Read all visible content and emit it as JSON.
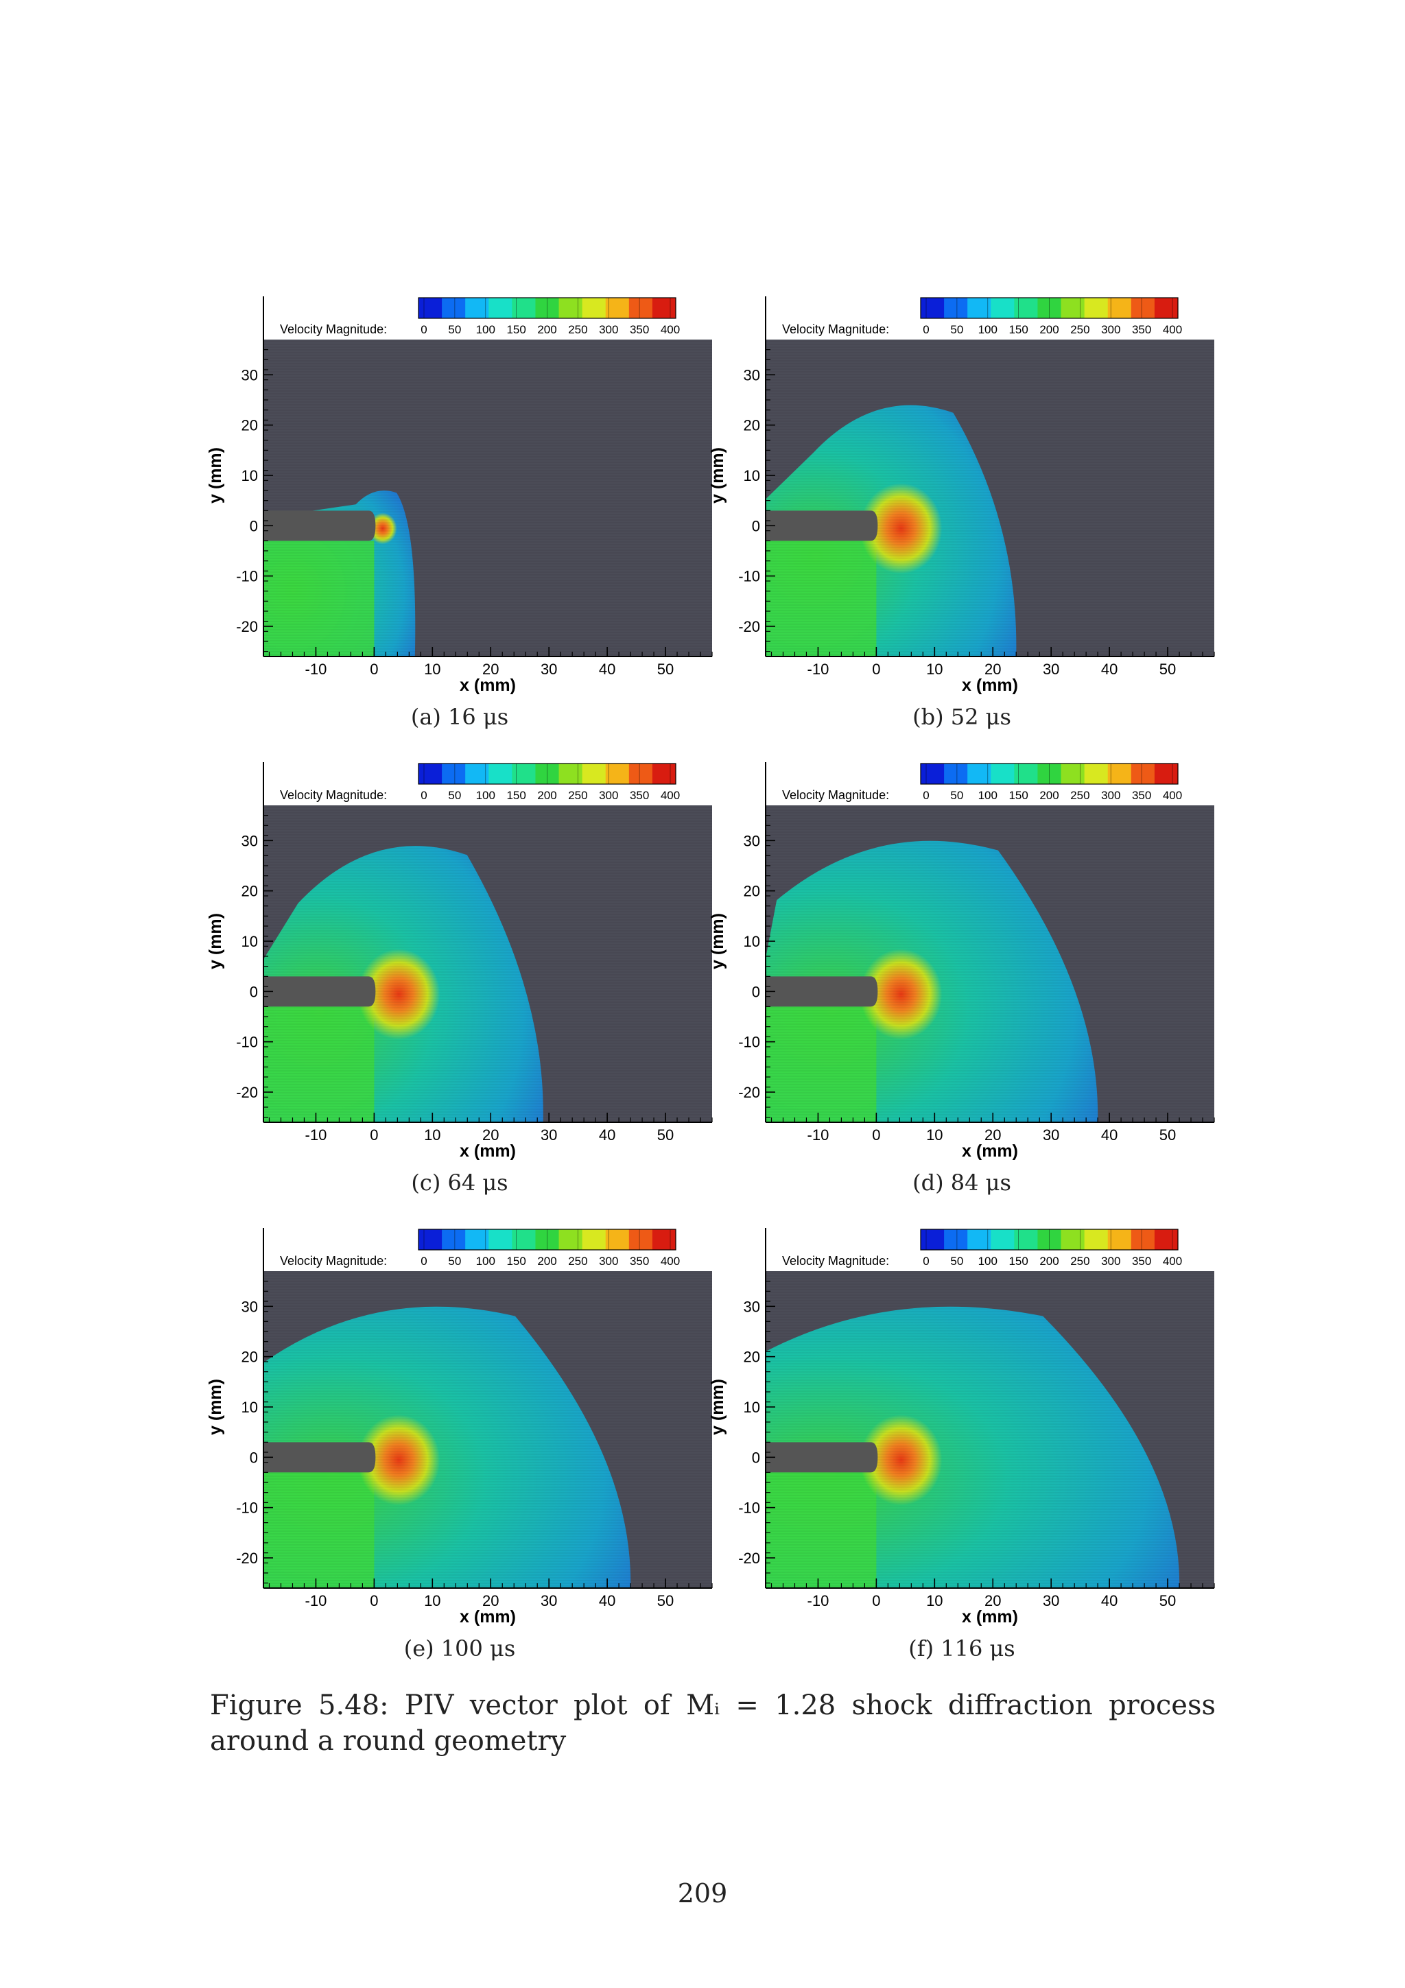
{
  "figure": {
    "caption_label": "Figure 5.48:",
    "caption_text": "PIV vector plot of Mᵢ = 1.28 shock diffraction process around a round geometry"
  },
  "page_number": "209",
  "colorbar": {
    "label": "Velocity Magnitude:",
    "ticks": [
      "0",
      "50",
      "100",
      "150",
      "200",
      "250",
      "300",
      "350",
      "400"
    ],
    "colors": [
      "#0a1fd8",
      "#0c6cf2",
      "#12b8f5",
      "#18e0c8",
      "#20e08a",
      "#30d440",
      "#8ee020",
      "#d8e820",
      "#f5b418",
      "#ee5a16",
      "#d81c10"
    ]
  },
  "axes": {
    "xlabel": "x (mm)",
    "ylabel": "y (mm)",
    "xticks": [
      "-10",
      "0",
      "10",
      "20",
      "30",
      "40",
      "50"
    ],
    "yticks": [
      "30",
      "20",
      "10",
      "0",
      "-10",
      "-20"
    ]
  },
  "colors": {
    "background_field": "#4b4c57",
    "wall": "#555555",
    "field_low": "#1e78d8",
    "field_mid": "#18c8a8",
    "field_high": "#3cd840",
    "hot": "#f08020"
  },
  "chart_data": [
    {
      "type": "heatmap",
      "panel": "a",
      "caption": "(a) 16 μs",
      "time_us": 16,
      "shock_front_x_mm": 7,
      "xlabel": "x (mm)",
      "ylabel": "y (mm)",
      "xlim": [
        -19,
        58
      ],
      "ylim": [
        -26,
        37
      ],
      "colorbar_range": [
        0,
        400
      ]
    },
    {
      "type": "heatmap",
      "panel": "b",
      "caption": "(b) 52 μs",
      "time_us": 52,
      "shock_front_x_mm": 24,
      "xlabel": "x (mm)",
      "ylabel": "y (mm)",
      "xlim": [
        -19,
        58
      ],
      "ylim": [
        -26,
        37
      ],
      "colorbar_range": [
        0,
        400
      ]
    },
    {
      "type": "heatmap",
      "panel": "c",
      "caption": "(c) 64 μs",
      "time_us": 64,
      "shock_front_x_mm": 29,
      "xlabel": "x (mm)",
      "ylabel": "y (mm)",
      "xlim": [
        -19,
        58
      ],
      "ylim": [
        -26,
        37
      ],
      "colorbar_range": [
        0,
        400
      ]
    },
    {
      "type": "heatmap",
      "panel": "d",
      "caption": "(d) 84 μs",
      "time_us": 84,
      "shock_front_x_mm": 38,
      "xlabel": "x (mm)",
      "ylabel": "y (mm)",
      "xlim": [
        -19,
        58
      ],
      "ylim": [
        -26,
        37
      ],
      "colorbar_range": [
        0,
        400
      ]
    },
    {
      "type": "heatmap",
      "panel": "e",
      "caption": "(e) 100 μs",
      "time_us": 100,
      "shock_front_x_mm": 44,
      "xlabel": "x (mm)",
      "ylabel": "y (mm)",
      "xlim": [
        -19,
        58
      ],
      "ylim": [
        -26,
        37
      ],
      "colorbar_range": [
        0,
        400
      ]
    },
    {
      "type": "heatmap",
      "panel": "f",
      "caption": "(f) 116 μs",
      "time_us": 116,
      "shock_front_x_mm": 52,
      "xlabel": "x (mm)",
      "ylabel": "y (mm)",
      "xlim": [
        -19,
        58
      ],
      "ylim": [
        -26,
        37
      ],
      "colorbar_range": [
        0,
        400
      ]
    }
  ]
}
